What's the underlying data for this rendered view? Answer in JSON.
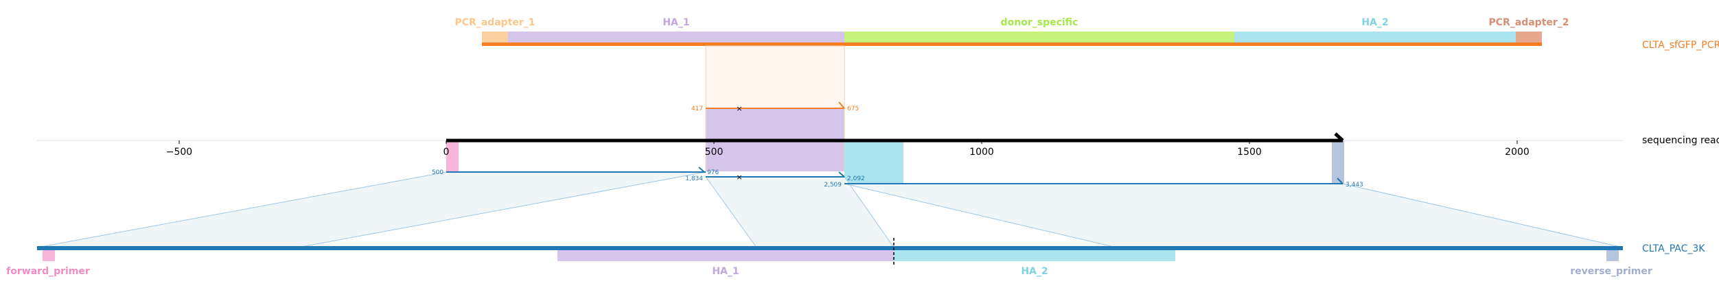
{
  "colors": {
    "pcr_adapter_1": "#fdd0a2",
    "ha_1": "#d5c5ea",
    "donor_specific": "#c6f27a",
    "ha_2": "#abe3ee",
    "pcr_adapter_2": "#e8a88e",
    "pcr_track": "#f47d20",
    "pac_track": "#1f77b4",
    "read_track": "#000000",
    "forward_primer": "#f7b6d9",
    "reverse_primer": "#b7c4dd",
    "link_fill": "#f0f5f8",
    "link_stroke": "#9ec7e4"
  },
  "pcr_track": {
    "name": "CLTA_sfGFP_PCR",
    "features": [
      {
        "label": "PCR_adapter_1",
        "color": "#fdc68b"
      },
      {
        "label": "HA_1",
        "color": "#c2a6de"
      },
      {
        "label": "donor_specific",
        "color": "#a6e84c"
      },
      {
        "label": "HA_2",
        "color": "#7fd3e5"
      },
      {
        "label": "PCR_adapter_2",
        "color": "#d88e74"
      }
    ]
  },
  "pcr_alignment": {
    "start_label": "417",
    "end_label": "675"
  },
  "read_track": {
    "name": "sequencing read",
    "ticks": [
      "−500",
      "0",
      "500",
      "1000",
      "1500",
      "2000"
    ]
  },
  "read_alignments": [
    {
      "read_start_label": "500",
      "read_end_label": "976"
    },
    {
      "ref_start_label": "1,834",
      "ref_end_label": "2,092"
    },
    {
      "read_start_label": "2,509",
      "read_end_label": "3,443"
    }
  ],
  "pac_track": {
    "name": "CLTA_PAC_3K",
    "features": [
      {
        "label": "forward_primer",
        "color": "#f08cc8"
      },
      {
        "label": "HA_1",
        "color": "#c2a6de"
      },
      {
        "label": "HA_2",
        "color": "#7fd3e5"
      },
      {
        "label": "reverse_primer",
        "color": "#9fb0cf"
      }
    ]
  }
}
